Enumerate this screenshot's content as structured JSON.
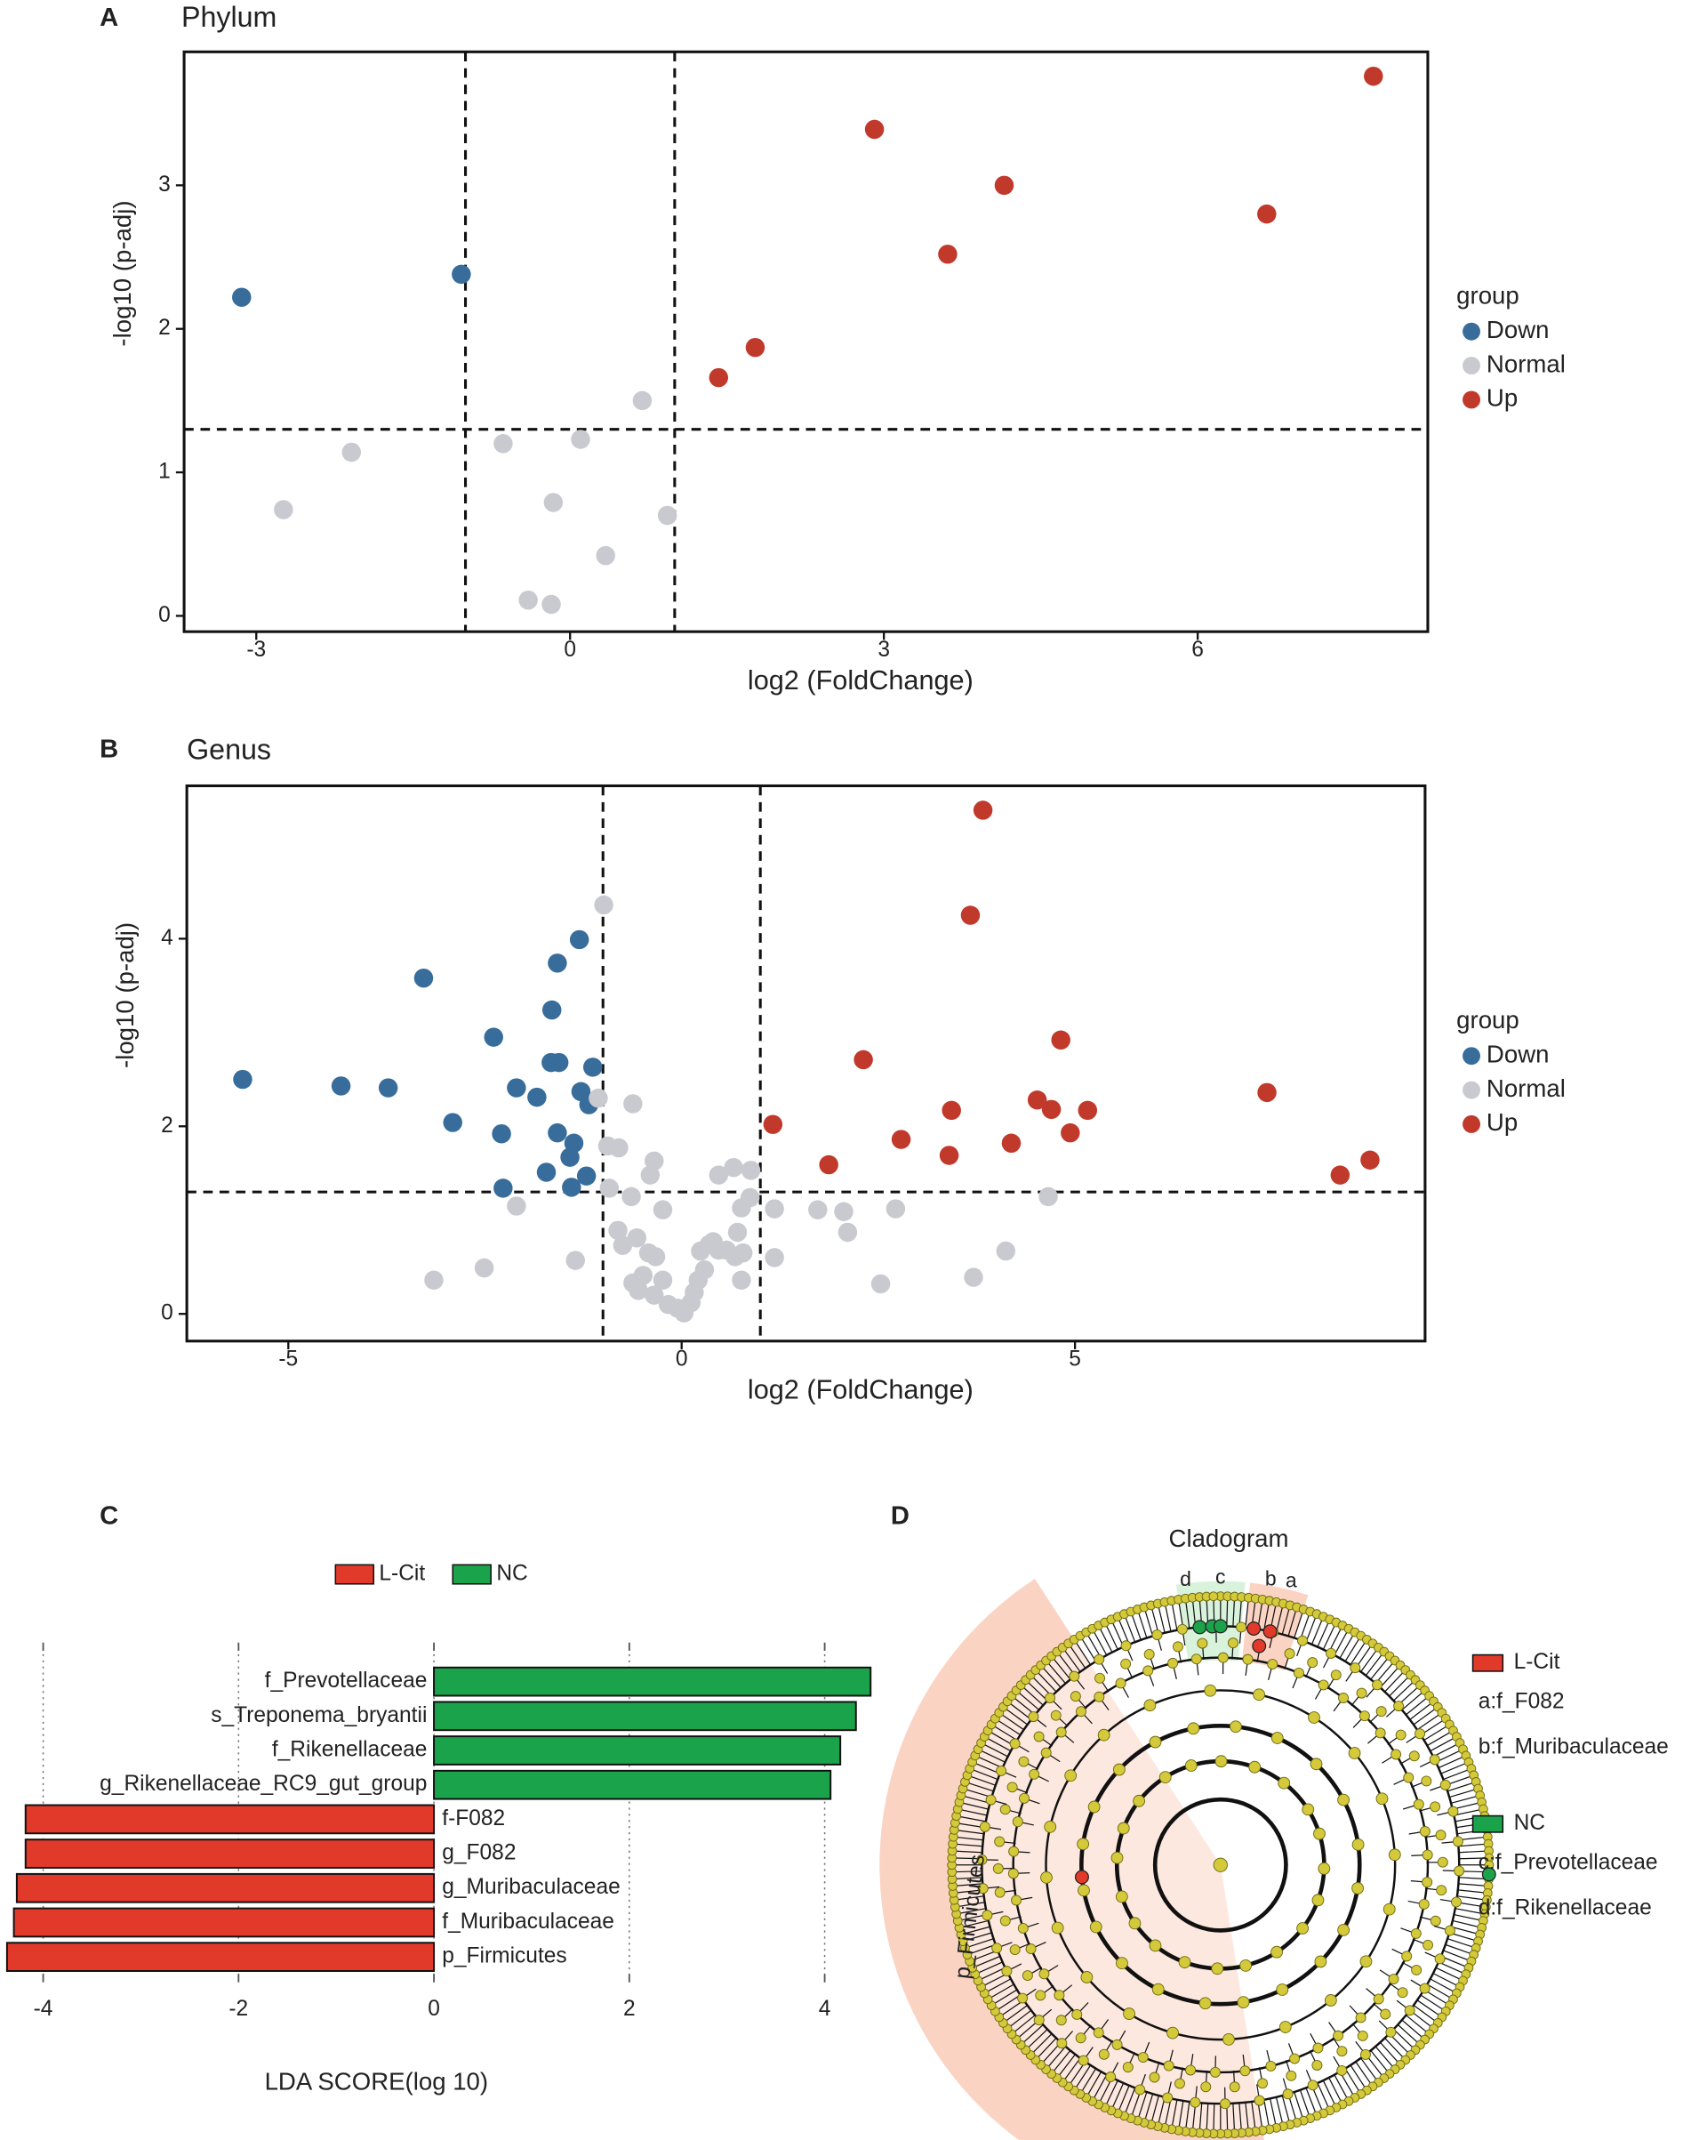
{
  "chart_data": [
    {
      "type": "scatter",
      "panel": "A",
      "title": "Phylum",
      "x_label": "log2 (FoldChange)",
      "y_label": "-log10 (p-adj)",
      "xlim": [
        -3.69,
        8.2
      ],
      "ylim": [
        -0.11,
        3.93
      ],
      "xticks": [
        -3,
        0,
        3,
        6
      ],
      "yticks": [
        0,
        1,
        2,
        3
      ],
      "vlines": [
        -1,
        1
      ],
      "hlines": [
        1.3
      ],
      "legend_title": "group",
      "legend": "right",
      "series": [
        {
          "name": "Down",
          "color": "#386d9b",
          "x": [
            -3.14,
            -1.04
          ],
          "values": [
            2.22,
            2.38
          ]
        },
        {
          "name": "Normal",
          "color": "#c8cad0",
          "x": [
            -2.74,
            -2.09,
            -0.64,
            0.1,
            0.69,
            -0.16,
            0.93,
            0.34,
            -0.4,
            -0.18
          ],
          "values": [
            0.74,
            1.14,
            1.2,
            1.23,
            1.5,
            0.79,
            0.7,
            0.42,
            0.11,
            0.08
          ]
        },
        {
          "name": "Up",
          "color": "#c0392b",
          "x": [
            1.42,
            1.77,
            2.91,
            3.61,
            4.15,
            6.66,
            7.68
          ],
          "values": [
            1.66,
            1.87,
            3.39,
            2.52,
            3.0,
            2.8,
            3.76
          ]
        }
      ]
    },
    {
      "type": "scatter",
      "panel": "B",
      "title": "Genus",
      "x_label": "log2 (FoldChange)",
      "y_label": "-log10 (p-adj)",
      "xlim": [
        -6.29,
        9.45
      ],
      "ylim": [
        -0.29,
        5.63
      ],
      "xticks": [
        -5,
        0,
        5
      ],
      "yticks": [
        0,
        2,
        4
      ],
      "vlines": [
        -1,
        1
      ],
      "hlines": [
        1.3
      ],
      "legend_title": "group",
      "legend": "right",
      "series": [
        {
          "name": "Down",
          "color": "#386d9b",
          "x": [
            -5.58,
            -4.33,
            -3.73,
            -3.28,
            -2.91,
            -2.39,
            -2.29,
            -2.27,
            -2.1,
            -1.84,
            -1.72,
            -1.65,
            -1.66,
            -1.56,
            -1.58,
            -1.58,
            -1.42,
            -1.4,
            -1.37,
            -1.3,
            -1.28,
            -1.21,
            -1.18,
            -1.13
          ],
          "values": [
            2.5,
            2.43,
            2.41,
            3.58,
            2.04,
            2.95,
            1.92,
            1.34,
            2.41,
            2.31,
            1.51,
            3.24,
            2.68,
            2.68,
            3.74,
            1.93,
            1.67,
            1.35,
            1.82,
            3.99,
            2.37,
            1.47,
            2.23,
            2.63
          ]
        },
        {
          "name": "Normal",
          "color": "#c8cad0",
          "x": [
            -3.15,
            -2.51,
            -2.1,
            -1.35,
            -0.99,
            -1.06,
            -0.62,
            -0.94,
            -0.8,
            -0.92,
            -0.64,
            -0.35,
            -0.4,
            -0.24,
            -0.81,
            -0.75,
            -0.57,
            -0.42,
            -0.33,
            -0.62,
            -0.49,
            -0.55,
            -0.35,
            -0.24,
            -0.17,
            -0.05,
            0.03,
            0.12,
            0.16,
            0.21,
            0.29,
            0.24,
            0.35,
            0.47,
            0.57,
            0.68,
            0.78,
            0.76,
            0.4,
            0.47,
            0.66,
            0.88,
            0.76,
            0.87,
            0.71,
            1.18,
            1.18,
            1.73,
            2.06,
            2.11,
            2.72,
            2.53,
            3.71,
            4.12,
            4.66
          ],
          "values": [
            0.36,
            0.49,
            1.15,
            0.57,
            4.36,
            2.3,
            2.24,
            1.79,
            1.77,
            1.34,
            1.25,
            1.63,
            1.48,
            1.11,
            0.89,
            0.73,
            0.81,
            0.65,
            0.61,
            0.33,
            0.41,
            0.25,
            0.2,
            0.36,
            0.1,
            0.06,
            0.01,
            0.12,
            0.23,
            0.36,
            0.47,
            0.67,
            0.74,
            0.68,
            0.68,
            0.61,
            0.65,
            0.36,
            0.77,
            1.48,
            1.56,
            1.53,
            1.13,
            1.24,
            0.87,
            1.12,
            0.6,
            1.11,
            1.09,
            0.87,
            1.12,
            0.32,
            0.39,
            0.67,
            1.25
          ]
        },
        {
          "name": "Up",
          "color": "#c0392b",
          "x": [
            3.83,
            3.67,
            2.31,
            1.16,
            1.87,
            2.79,
            3.43,
            3.4,
            4.19,
            4.52,
            4.7,
            4.82,
            4.94,
            5.16,
            7.44,
            8.37,
            8.75
          ],
          "values": [
            5.37,
            4.25,
            2.71,
            2.02,
            1.59,
            1.86,
            2.17,
            1.69,
            1.82,
            2.28,
            2.18,
            2.92,
            1.93,
            2.17,
            2.36,
            1.48,
            1.64
          ]
        }
      ]
    },
    {
      "type": "hbar",
      "panel": "C",
      "x_label": "LDA SCORE(log 10)",
      "xlim": [
        -4.4,
        4.59
      ],
      "xticks": [
        -4,
        -2,
        0,
        2,
        4
      ],
      "grid": true,
      "legend": "top",
      "categories": [
        "f_Prevotellaceae",
        "s_Treponema_bryantii",
        "f_Rikenellaceae",
        "g_Rikenellaceae_RC9_gut_group",
        "f-F082",
        "g_F082",
        "g_Muribaculaceae",
        "f_Muribaculaceae",
        "p_Firmicutes"
      ],
      "series": [
        {
          "name": "L-Cit",
          "color": "#e13a2b",
          "values": [
            null,
            null,
            null,
            null,
            -4.18,
            -4.18,
            -4.27,
            -4.3,
            -4.37
          ]
        },
        {
          "name": "NC",
          "color": "#1ba34b",
          "values": [
            4.47,
            4.32,
            4.16,
            4.06,
            null,
            null,
            null,
            null,
            null
          ]
        }
      ]
    },
    {
      "type": "cladogram",
      "panel": "D",
      "title": "Cladogram",
      "clade_labels": [
        "d",
        "c",
        "b",
        "a"
      ],
      "sector_label": "p_Firmicutes",
      "series": [
        {
          "name": "L-Cit",
          "color": "#e13a2b",
          "members": [
            "a:f_F082",
            "b:f_Muribaculaceae"
          ]
        },
        {
          "name": "NC",
          "color": "#1ba34b",
          "members": [
            "c:f_Prevotellaceae",
            "d:f_Rikenellaceae"
          ]
        }
      ]
    }
  ]
}
